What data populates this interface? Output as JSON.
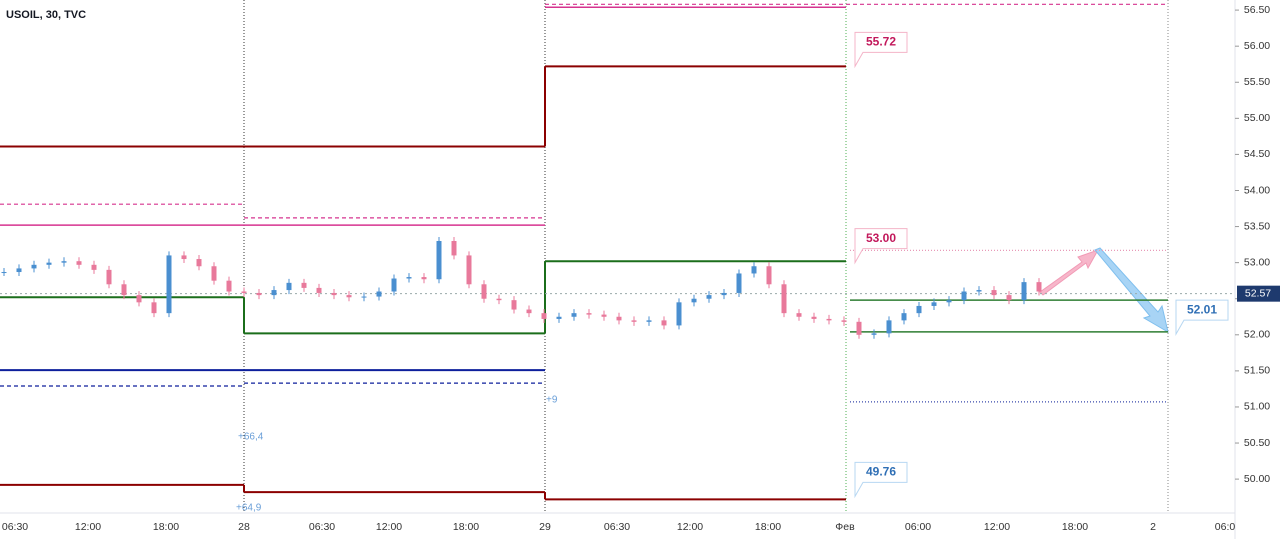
{
  "chart_data": {
    "type": "candlestick",
    "title": "USOIL, 30, TVC",
    "up_color": "#4a8fd0",
    "down_color": "#e8799b",
    "closes": [
      52.87,
      52.92,
      52.97,
      53.0,
      53.02,
      52.97,
      52.9,
      52.7,
      52.55,
      52.45,
      52.3,
      53.1,
      53.05,
      52.95,
      52.75,
      52.6,
      52.58,
      52.55,
      52.62,
      52.72,
      52.65,
      52.58,
      52.55,
      52.52,
      52.53,
      52.6,
      52.78,
      52.8,
      52.77,
      53.3,
      53.1,
      52.7,
      52.5,
      52.48,
      52.35,
      52.3,
      52.22,
      52.25,
      52.3,
      52.28,
      52.25,
      52.2,
      52.18,
      52.2,
      52.13,
      52.45,
      52.5,
      52.55,
      52.58,
      52.85,
      52.95,
      52.7,
      52.3,
      52.25,
      52.22,
      52.2,
      52.18,
      52.0,
      52.02,
      52.2,
      52.3,
      52.4,
      52.45,
      52.48,
      52.6,
      52.62,
      52.55,
      52.48,
      52.73,
      52.6
    ],
    "ylim": [
      49.17,
      56.64
    ],
    "yticks": [
      {
        "value": 56.5,
        "label": "56.50"
      },
      {
        "value": 56,
        "label": "56.00"
      },
      {
        "value": 55.5,
        "label": "55.50"
      },
      {
        "value": 55,
        "label": "55.00"
      },
      {
        "value": 54.5,
        "label": "54.50"
      },
      {
        "value": 54,
        "label": "54.00"
      },
      {
        "value": 53.5,
        "label": "53.50"
      },
      {
        "value": 53,
        "label": "53.00"
      },
      {
        "value": 52.5,
        "label": "52.50"
      },
      {
        "value": 52,
        "label": "52.00"
      },
      {
        "value": 51.5,
        "label": "51.50"
      },
      {
        "value": 51,
        "label": "51.00"
      },
      {
        "value": 50.5,
        "label": "50.50"
      },
      {
        "value": 50,
        "label": "50.00"
      }
    ],
    "x_labels": [
      "06:30",
      "12:00",
      "18:00",
      "28",
      "06:30",
      "12:00",
      "18:00",
      "29",
      "06:30",
      "12:00",
      "18:00",
      "Фев",
      "06:00",
      "12:00",
      "18:00",
      "2",
      "06:0"
    ],
    "levels": [
      {
        "color": "#8b0000",
        "style": "solid",
        "values": [
          54.61,
          54.61,
          55.72,
          null
        ]
      },
      {
        "color": "#d6338f",
        "style": "thin",
        "values": [
          53.52,
          53.52,
          56.54,
          null
        ]
      },
      {
        "color": "#d6338f",
        "style": "dashed",
        "values": [
          53.81,
          53.62,
          56.58,
          56.58
        ]
      },
      {
        "color": "#1b6e1b",
        "style": "solid",
        "values": [
          52.52,
          52.02,
          53.02,
          null
        ]
      },
      {
        "color": "#0d1f9c",
        "style": "solid",
        "values": [
          51.51,
          51.51,
          null,
          null
        ]
      },
      {
        "color": "#0d1f9c",
        "style": "dashed",
        "values": [
          51.29,
          51.33,
          null,
          null
        ]
      },
      {
        "color": "#8b0000",
        "style": "solid",
        "values": [
          49.92,
          49.82,
          49.72,
          null
        ]
      },
      {
        "color": "#2e7d32",
        "style": "thin",
        "values": [
          null,
          null,
          null,
          52.48
        ]
      },
      {
        "color": "#2e7d32",
        "style": "thin",
        "values": [
          null,
          null,
          null,
          52.04
        ]
      },
      {
        "color": "#e89ab8",
        "style": "dotted",
        "values": [
          null,
          null,
          null,
          53.17
        ]
      },
      {
        "color": "#3949ab",
        "style": "dotted",
        "values": [
          null,
          null,
          null,
          51.07
        ]
      }
    ],
    "annotations": [
      {
        "value": 55.72,
        "label": "55.72",
        "color": "#c2185b"
      },
      {
        "value": 53,
        "label": "53.00",
        "color": "#c2185b"
      },
      {
        "value": 49.76,
        "label": "49.76",
        "color": "#2f6fb5"
      }
    ],
    "target": {
      "value": 52.01,
      "label": "52.01",
      "color": "#2f6fb5"
    },
    "last_price": {
      "value": 52.57,
      "label": "52.57"
    },
    "notes": [
      "+66,4",
      "+64,9",
      "+9"
    ]
  }
}
